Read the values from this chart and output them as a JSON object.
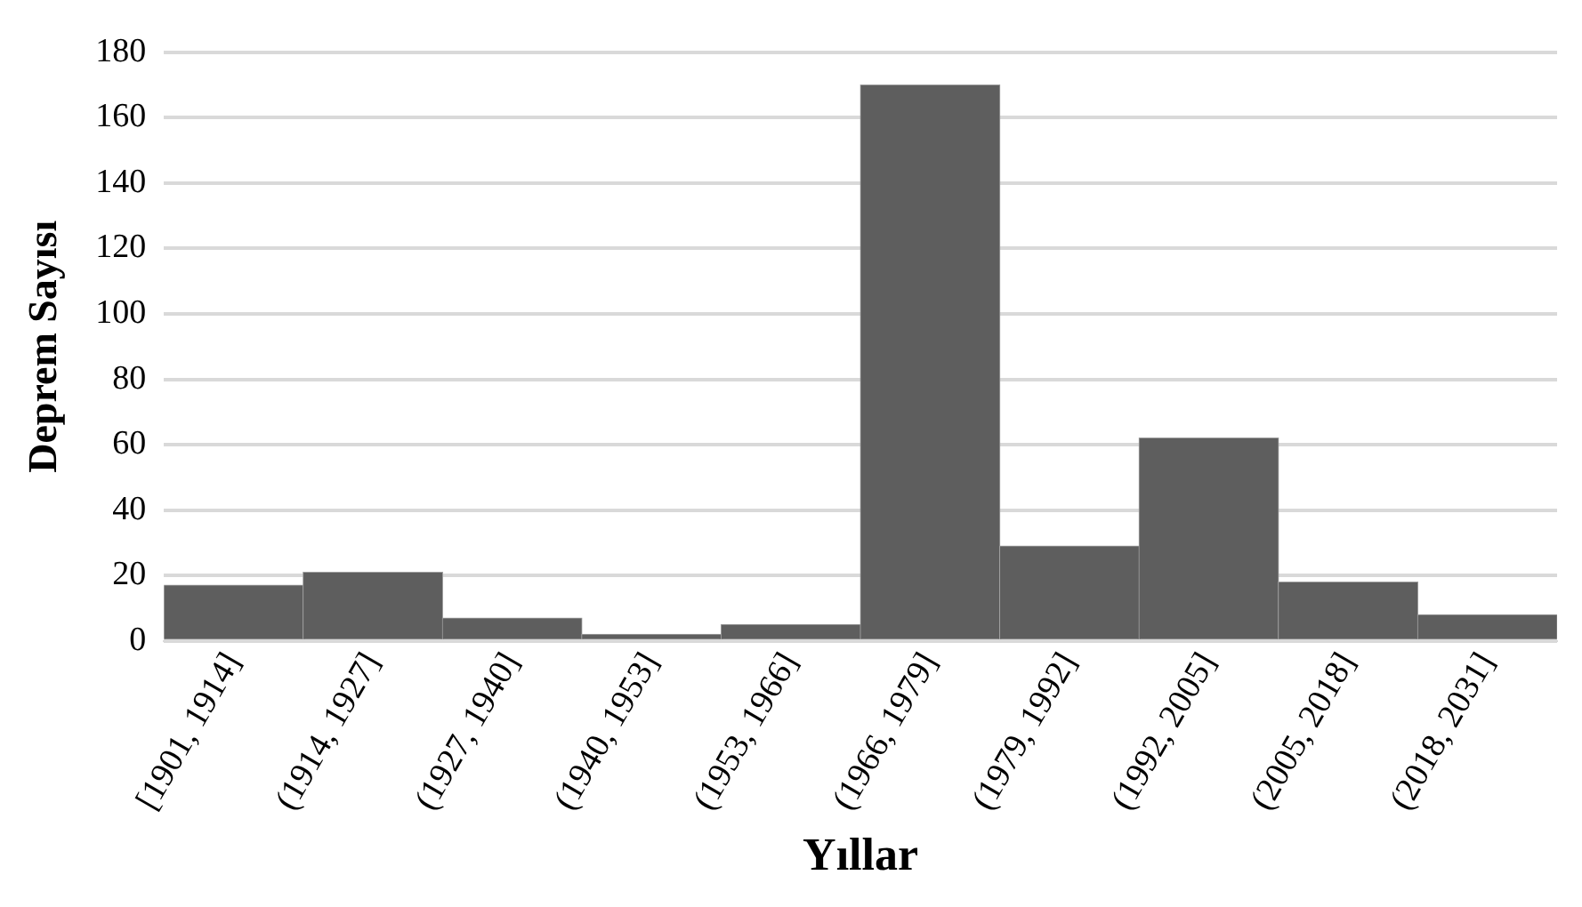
{
  "chart_data": {
    "type": "bar",
    "xlabel": "Yıllar",
    "ylabel": "Deprem Sayısı",
    "categories": [
      "[1901, 1914]",
      "(1914, 1927]",
      "(1927, 1940]",
      "(1940, 1953]",
      "(1953, 1966]",
      "(1966, 1979]",
      "(1979, 1992]",
      "(1992, 2005]",
      "(2005, 2018]",
      "(2018, 2031]"
    ],
    "values": [
      17,
      21,
      7,
      2,
      5,
      170,
      29,
      62,
      18,
      8
    ],
    "color": "#5e5e5e",
    "ylim": [
      0,
      180
    ],
    "yticks": [
      0,
      20,
      40,
      60,
      80,
      100,
      120,
      140,
      160,
      180
    ],
    "grid": "y",
    "legend": false
  }
}
